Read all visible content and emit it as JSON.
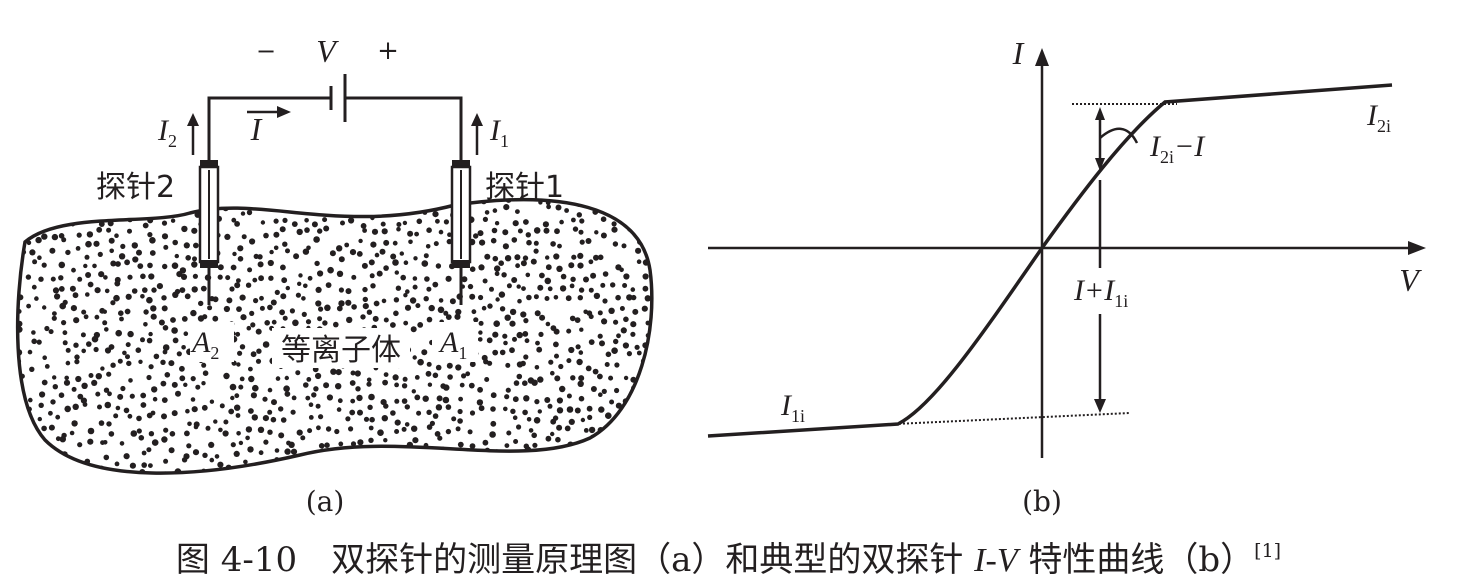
{
  "panel_a": {
    "minus": "−",
    "voltage": "V",
    "plus": "+",
    "current": "I",
    "current2": {
      "base": "I",
      "sub": "2"
    },
    "current1": {
      "base": "I",
      "sub": "1"
    },
    "probe2": "探针2",
    "probe1": "探针1",
    "area2": {
      "base": "A",
      "sub": "2"
    },
    "area1": {
      "base": "A",
      "sub": "1"
    },
    "plasma": "等离子体",
    "label": "(a)"
  },
  "panel_b": {
    "axis_y": "I",
    "axis_x": "V",
    "i2i": {
      "base": "I",
      "sub": "2i"
    },
    "i2i_minus_i": {
      "base": "I",
      "sub": "2i",
      "rest": "−I"
    },
    "i_plus_i1i": {
      "pre": "I+I",
      "sub": "1i"
    },
    "i1i": {
      "base": "I",
      "sub": "1i"
    },
    "label": "(b)"
  },
  "caption": {
    "prefix": "图 4-10　双探针的测量原理图（a）和典型的双探针 ",
    "italic": "I-V",
    "suffix": " 特性曲线（b）",
    "ref": "[1]"
  },
  "colors": {
    "ink": "#231f20",
    "background": "#ffffff"
  }
}
